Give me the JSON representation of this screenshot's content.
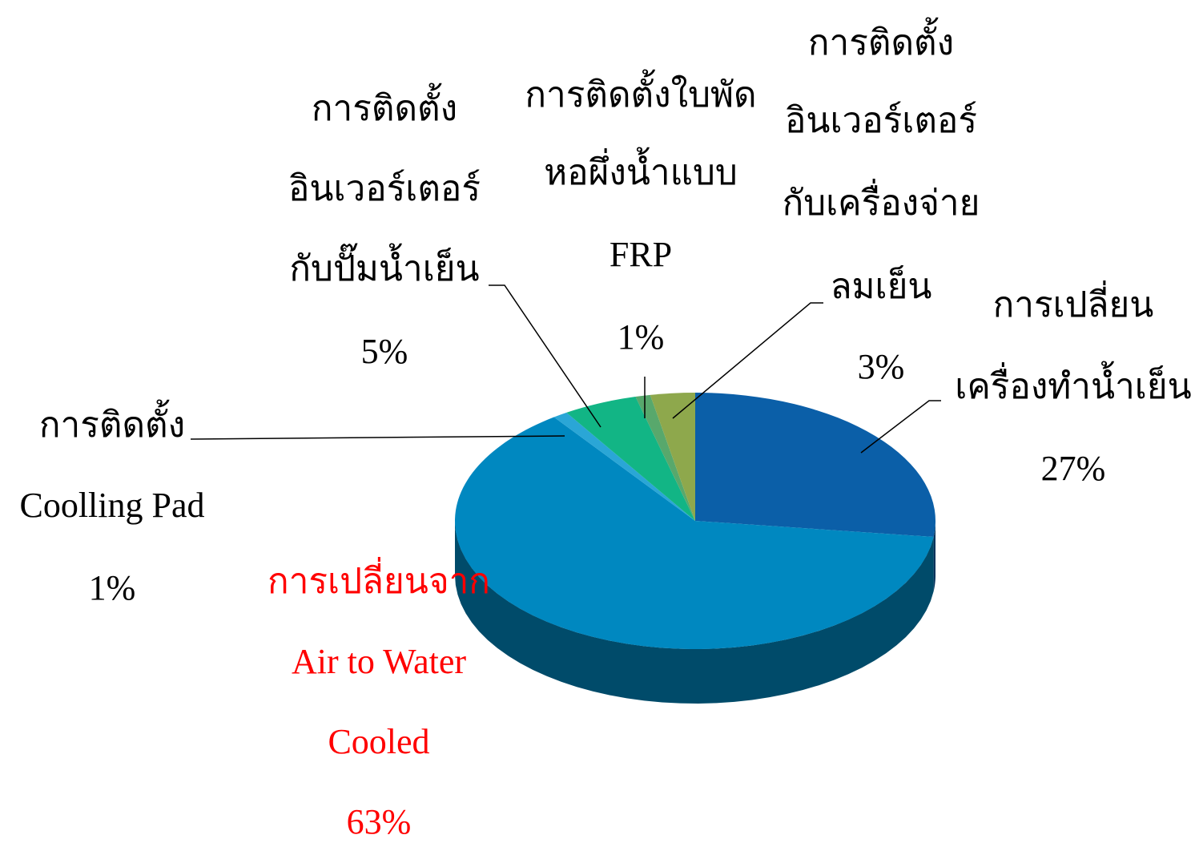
{
  "chart_data": {
    "type": "pie3d",
    "categories": [
      [
        "การเปลี่ยน",
        "เครื่องทำน้ำเย็น"
      ],
      [
        "การเปลี่ยนจาก",
        "Air to Water",
        "Cooled"
      ],
      [
        "การติดตั้ง",
        "Coolling Pad"
      ],
      [
        "การติดตั้ง",
        "อินเวอร์เตอร์",
        "กับปั๊มน้ำเย็น"
      ],
      [
        "การติดตั้งใบพัด",
        "หอผึ่งน้ำแบบ",
        "FRP"
      ],
      [
        "การติดตั้ง",
        "อินเวอร์เตอร์",
        "กับเครื่องจ่าย",
        "ลมเย็น"
      ]
    ],
    "values": [
      27,
      63,
      1,
      5,
      1,
      3
    ],
    "value_labels": [
      "27%",
      "63%",
      "1%",
      "5%",
      "1%",
      "3%"
    ],
    "colors": [
      "#0b5fa8",
      "#0088c0",
      "#2aa6d6",
      "#12b585",
      "#58a86c",
      "#8ea84c"
    ],
    "label_colors": [
      "#000000",
      "#ff0000",
      "#000000",
      "#000000",
      "#000000",
      "#000000"
    ]
  }
}
